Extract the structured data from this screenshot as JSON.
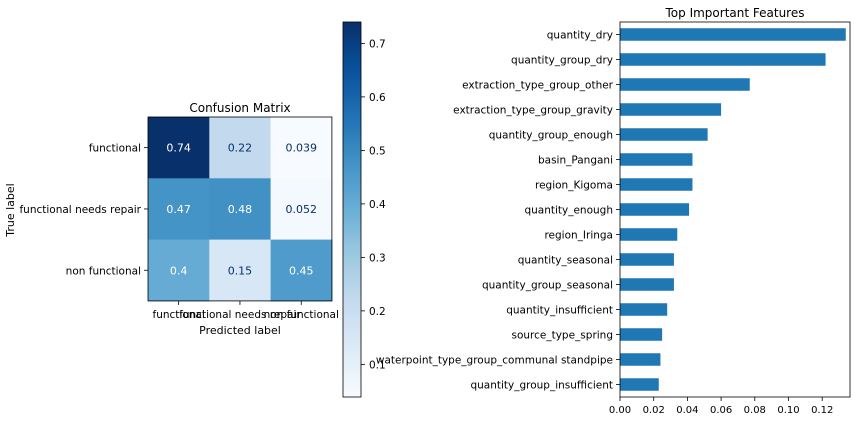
{
  "chart_data": [
    {
      "type": "heatmap",
      "title": "Confusion Matrix",
      "xlabel": "Predicted label",
      "ylabel": "True label",
      "row_labels": [
        "functional",
        "functional needs repair",
        "non functional"
      ],
      "col_labels": [
        "functional",
        "functional needs repair",
        "non functional"
      ],
      "values": [
        [
          0.74,
          0.22,
          0.039
        ],
        [
          0.47,
          0.48,
          0.052
        ],
        [
          0.4,
          0.15,
          0.45
        ]
      ],
      "value_labels": [
        [
          "0.74",
          "0.22",
          "0.039"
        ],
        [
          "0.47",
          "0.48",
          "0.052"
        ],
        [
          "0.4",
          "0.15",
          "0.45"
        ]
      ],
      "colormap": "Blues",
      "colorbar": {
        "range": [
          0.039,
          0.74
        ],
        "ticks": [
          0.1,
          0.2,
          0.3,
          0.4,
          0.5,
          0.6,
          0.7
        ],
        "tick_labels": [
          "0.1",
          "0.2",
          "0.3",
          "0.4",
          "0.5",
          "0.6",
          "0.7"
        ]
      }
    },
    {
      "type": "bar",
      "orientation": "horizontal",
      "title": "Top Important Features",
      "xlabel": "",
      "ylabel": "",
      "color": "#1f77b4",
      "categories": [
        "quantity_dry",
        "quantity_group_dry",
        "extraction_type_group_other",
        "extraction_type_group_gravity",
        "quantity_group_enough",
        "basin_Pangani",
        "region_Kigoma",
        "quantity_enough",
        "region_Iringa",
        "quantity_seasonal",
        "quantity_group_seasonal",
        "quantity_insufficient",
        "source_type_spring",
        "waterpoint_type_group_communal standpipe",
        "quantity_group_insufficient"
      ],
      "values": [
        0.134,
        0.122,
        0.077,
        0.06,
        0.052,
        0.043,
        0.043,
        0.041,
        0.034,
        0.032,
        0.032,
        0.028,
        0.025,
        0.024,
        0.023
      ],
      "xlim": [
        0,
        0.1365
      ],
      "xticks": [
        0,
        0.02,
        0.04,
        0.06,
        0.08,
        0.1,
        0.12
      ],
      "xtick_labels": [
        "0.00",
        "0.02",
        "0.04",
        "0.06",
        "0.08",
        "0.10",
        "0.12"
      ],
      "grid": false
    }
  ]
}
